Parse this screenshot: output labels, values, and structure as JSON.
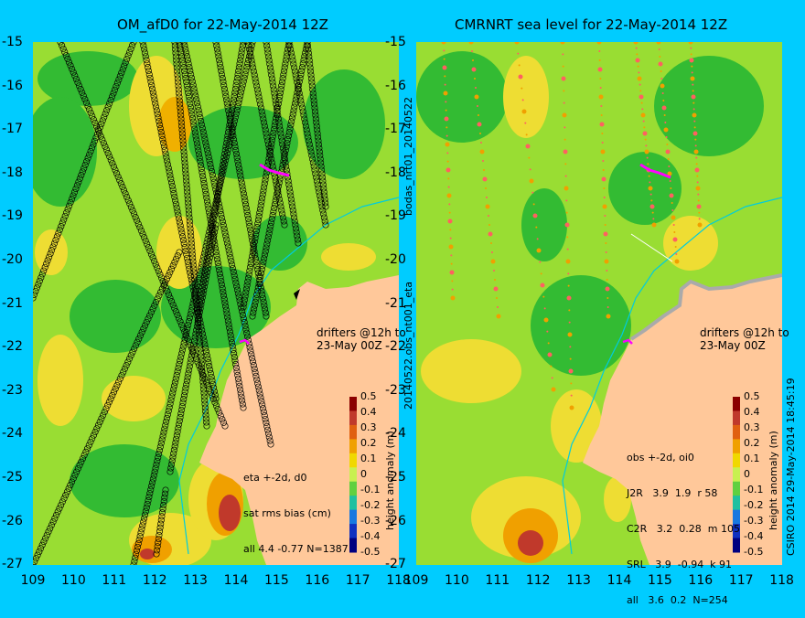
{
  "left_panel": {
    "title": "OM_afD0 for 22-May-2014 12Z",
    "side_label": "20140522.obs_nt001_eta",
    "stats": [
      "eta +-2d, d0",
      "sat rms bias (cm)",
      "all 4.4 -0.77 N=1387"
    ],
    "drifters": [
      "drifters @12h to",
      "23-May 00Z"
    ]
  },
  "right_panel": {
    "title": "CMRNRT sea level  for 22-May-2014 12Z",
    "side_label": "bodas_nrt01_20140522",
    "stats": [
      "obs +-2d, oi0",
      "J2R   3.9  1.9  r 58",
      "C2R   3.2  0.28  m 105",
      "SRL   3.9  -0.94  k 91",
      "all   3.6  0.2  N=254"
    ],
    "drifters": [
      "drifters @12h to",
      "23-May 00Z"
    ],
    "credit": "CSIRO 2014  29-May-2014 18:45:19"
  },
  "colorbar": {
    "label": "height anomaly (m)",
    "ticks": [
      "0.5",
      "0.4",
      "0.3",
      "0.2",
      "0.1",
      "0",
      "-0.1",
      "-0.2",
      "-0.3",
      "-0.4",
      "-0.5"
    ],
    "colors": [
      "#8b0000",
      "#c0392b",
      "#e06010",
      "#f0a000",
      "#f0d800",
      "#c8f050",
      "#60d040",
      "#20c0a0",
      "#1878e0",
      "#1030c0",
      "#000080"
    ]
  },
  "axes": {
    "lat_ticks": [
      "-15",
      "-16",
      "-17",
      "-18",
      "-19",
      "-20",
      "-21",
      "-22",
      "-23",
      "-24",
      "-25",
      "-26",
      "-27"
    ],
    "lon_ticks": [
      "109",
      "110",
      "111",
      "112",
      "113",
      "114",
      "115",
      "116",
      "117",
      "118"
    ]
  },
  "map_colors": {
    "base": "#99dd33",
    "green": "#33bb33",
    "yellow": "#eedd33",
    "orange": "#f0a000",
    "land": "#ffc89a"
  }
}
